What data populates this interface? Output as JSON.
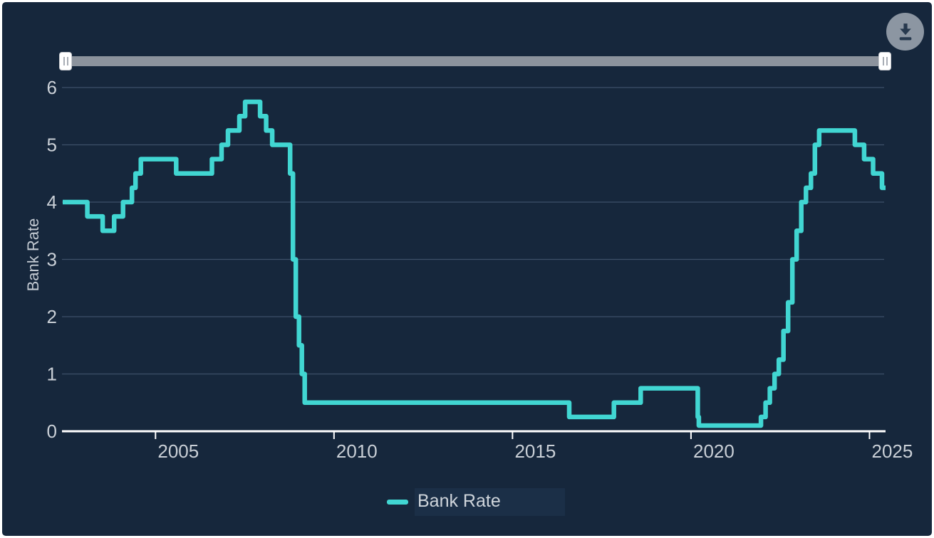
{
  "colors": {
    "background": "#16273C",
    "line": "#41D6D2",
    "grid": "#3E5068",
    "axis_line": "#FFFFFF",
    "tick_label": "#C9CFD6",
    "slider_track": "#8C939D",
    "slider_handle": "#FFFFFF",
    "download_button": "#8C96A2",
    "download_icon": "#27394E",
    "legend_text": "#CFD5DB",
    "legend_highlight": "#1B2F47"
  },
  "toolbar": {
    "download_icon": "download-icon"
  },
  "y_axis": {
    "title": "Bank Rate",
    "tick_labels": [
      "0",
      "1",
      "2",
      "3",
      "4",
      "5",
      "6"
    ]
  },
  "x_axis": {
    "tick_labels": [
      "2005",
      "2010",
      "2015",
      "2020",
      "2025"
    ]
  },
  "legend": {
    "items": [
      {
        "label": "Bank Rate",
        "color": "#41D6D2"
      }
    ]
  },
  "chart_data": {
    "type": "line",
    "line_style": "step-after",
    "title": "",
    "xlabel": "",
    "ylabel": "Bank Rate",
    "xlim": [
      2002.4,
      2025.45
    ],
    "ylim": [
      0,
      6
    ],
    "x_ticks": [
      2005,
      2010,
      2015,
      2020,
      2025
    ],
    "y_ticks": [
      0,
      1,
      2,
      3,
      4,
      5,
      6
    ],
    "grid": "horizontal",
    "legend_position": "bottom",
    "series": [
      {
        "name": "Bank Rate",
        "color": "#41D6D2",
        "points": [
          [
            2002.4,
            4.0
          ],
          [
            2003.09,
            3.75
          ],
          [
            2003.52,
            3.5
          ],
          [
            2003.84,
            3.75
          ],
          [
            2004.09,
            4.0
          ],
          [
            2004.34,
            4.25
          ],
          [
            2004.44,
            4.5
          ],
          [
            2004.59,
            4.75
          ],
          [
            2005.58,
            4.5
          ],
          [
            2006.58,
            4.75
          ],
          [
            2006.85,
            5.0
          ],
          [
            2007.03,
            5.25
          ],
          [
            2007.35,
            5.5
          ],
          [
            2007.51,
            5.75
          ],
          [
            2007.93,
            5.5
          ],
          [
            2008.1,
            5.25
          ],
          [
            2008.27,
            5.0
          ],
          [
            2008.77,
            4.5
          ],
          [
            2008.85,
            3.0
          ],
          [
            2008.93,
            2.0
          ],
          [
            2009.02,
            1.5
          ],
          [
            2009.1,
            1.0
          ],
          [
            2009.18,
            0.5
          ],
          [
            2016.59,
            0.25
          ],
          [
            2017.84,
            0.5
          ],
          [
            2018.59,
            0.75
          ],
          [
            2020.19,
            0.25
          ],
          [
            2020.22,
            0.1
          ],
          [
            2021.96,
            0.25
          ],
          [
            2022.09,
            0.5
          ],
          [
            2022.21,
            0.75
          ],
          [
            2022.34,
            1.0
          ],
          [
            2022.46,
            1.25
          ],
          [
            2022.59,
            1.75
          ],
          [
            2022.72,
            2.25
          ],
          [
            2022.84,
            3.0
          ],
          [
            2022.96,
            3.5
          ],
          [
            2023.09,
            4.0
          ],
          [
            2023.22,
            4.25
          ],
          [
            2023.36,
            4.5
          ],
          [
            2023.47,
            5.0
          ],
          [
            2023.59,
            5.25
          ],
          [
            2024.59,
            5.0
          ],
          [
            2024.85,
            4.75
          ],
          [
            2025.1,
            4.5
          ],
          [
            2025.35,
            4.25
          ],
          [
            2025.45,
            4.25
          ]
        ]
      }
    ]
  }
}
